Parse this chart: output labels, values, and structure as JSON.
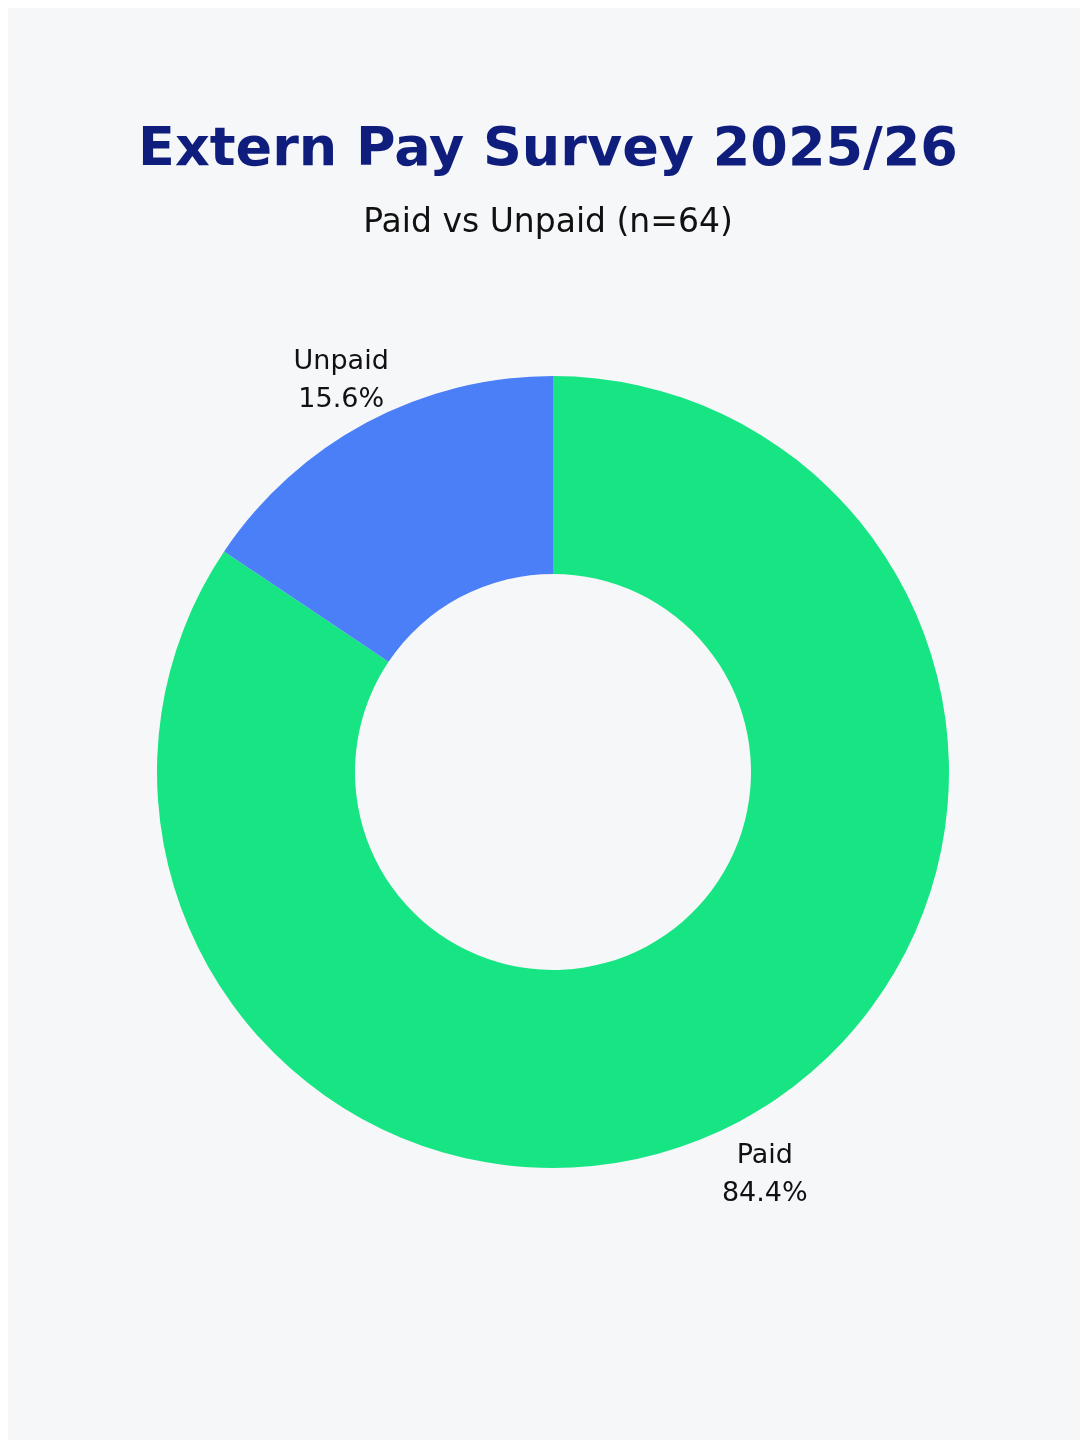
{
  "chart_data": {
    "type": "donut",
    "title": "Extern Pay Survey 2025/26",
    "subtitle": "Paid vs Unpaid (n=64)",
    "categories": [
      "Paid",
      "Unpaid"
    ],
    "values": [
      84.4,
      15.6
    ],
    "colors": [
      "#17e584",
      "#4b7ff7"
    ],
    "value_labels": [
      "84.4%",
      "15.6%"
    ]
  }
}
